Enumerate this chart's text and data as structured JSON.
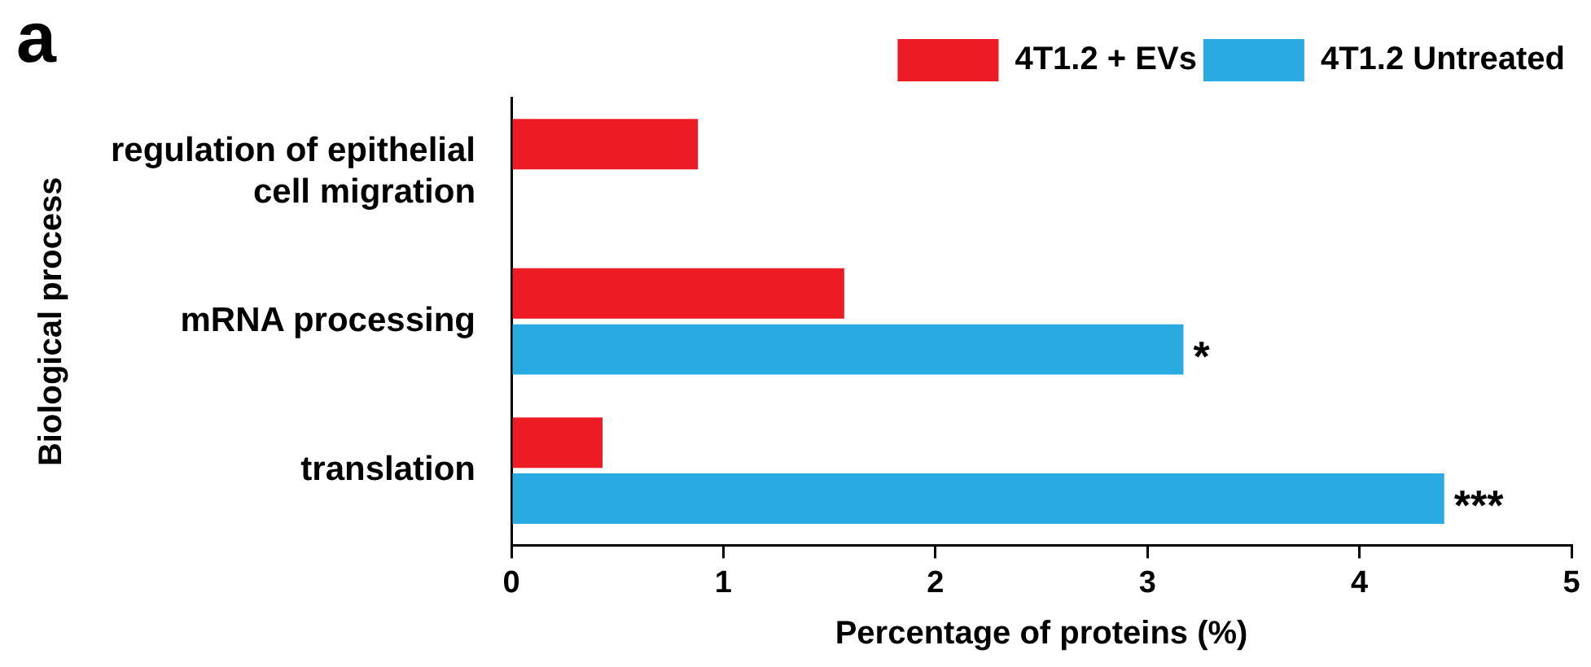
{
  "chart_data": {
    "type": "bar",
    "orientation": "horizontal",
    "xlabel": "Percentage of proteins (%)",
    "ylabel": "Biological process",
    "categories": [
      "regulation of epithelial cell migration",
      "mRNA processing",
      "translation"
    ],
    "series": [
      {
        "name": "4T1.2 + EVs",
        "color": "#ed1c24",
        "values": [
          0.88,
          1.57,
          0.43
        ]
      },
      {
        "name": "4T1.2 Untreated",
        "color": "#29abe2",
        "values": [
          null,
          3.17,
          4.4
        ]
      }
    ],
    "xlim": [
      0,
      5
    ],
    "xticks": [
      0,
      1,
      2,
      3,
      4,
      5
    ],
    "grid": false,
    "legend": "top right",
    "annotations": [
      "a",
      {
        "text": "*",
        "x": 3.17,
        "y": "mRNA processing"
      },
      {
        "text": "***",
        "x": 4.4,
        "y": "translation"
      }
    ]
  }
}
